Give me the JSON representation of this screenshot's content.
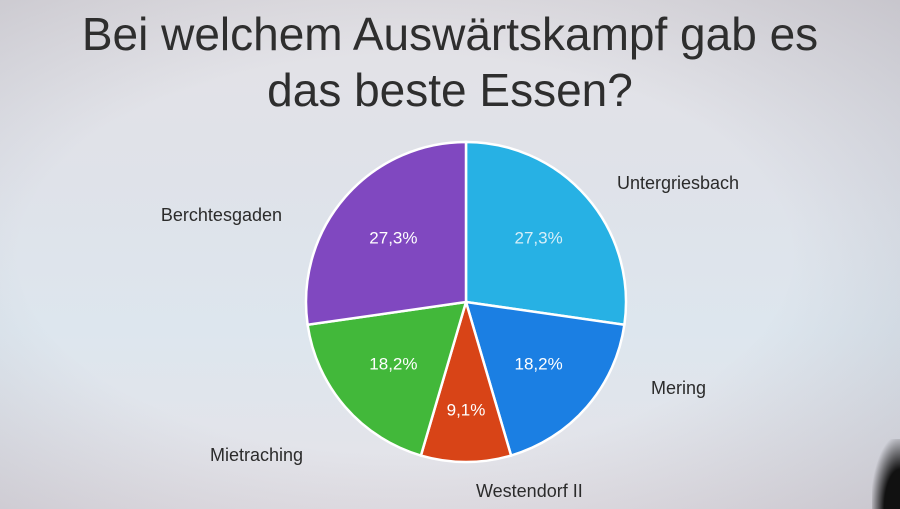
{
  "title_lines": [
    "Bei welchem Auswärtskampf gab es",
    "das beste Essen?"
  ],
  "chart_data": {
    "type": "pie",
    "title": "Bei welchem Auswärtskampf gab es das beste Essen?",
    "start_angle_deg": 0,
    "direction": "clockwise",
    "slices": [
      {
        "label": "Untergriesbach",
        "value": 27.3,
        "display": "27,3%",
        "color": "#27b1e4",
        "label_color": "#d6eef8"
      },
      {
        "label": "Mering",
        "value": 18.2,
        "display": "18,2%",
        "color": "#1b7fe3",
        "label_color": "#ffffff"
      },
      {
        "label": "Westendorf II",
        "value": 9.1,
        "display": "9,1%",
        "color": "#d84417",
        "label_color": "#ffffff"
      },
      {
        "label": "Mietraching",
        "value": 18.2,
        "display": "18,2%",
        "color": "#42b83a",
        "label_color": "#ffffff"
      },
      {
        "label": "Berchtesgaden",
        "value": 27.3,
        "display": "27,3%",
        "color": "#8048c0",
        "label_color": "#ffffff"
      }
    ]
  }
}
